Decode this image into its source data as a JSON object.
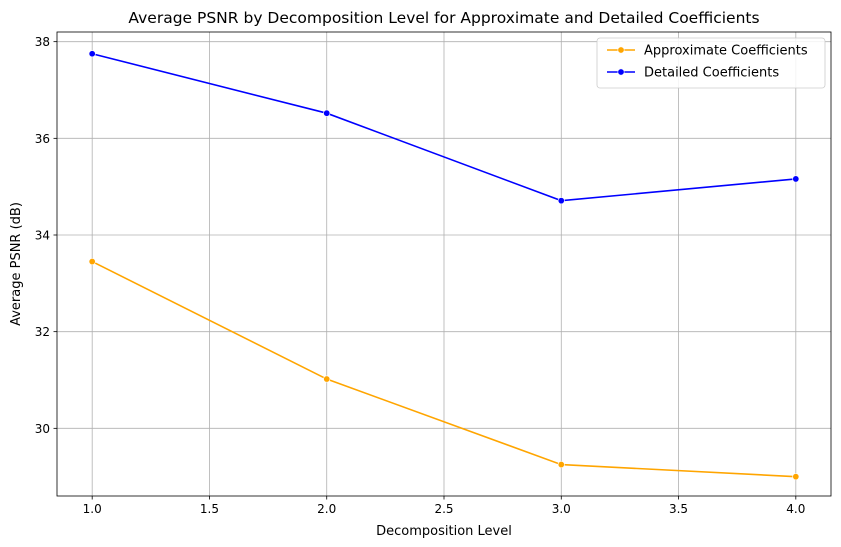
{
  "chart_data": {
    "type": "line",
    "title": "Average PSNR by Decomposition Level for Approximate and Detailed Coefficients",
    "xlabel": "Decomposition Level",
    "ylabel": "Average PSNR (dB)",
    "x": [
      1.0,
      2.0,
      3.0,
      4.0
    ],
    "xlim": [
      0.85,
      4.15
    ],
    "ylim": [
      28.6,
      38.2
    ],
    "xticks": [
      1.0,
      1.5,
      2.0,
      2.5,
      3.0,
      3.5,
      4.0
    ],
    "xtick_labels": [
      "1.0",
      "1.5",
      "2.0",
      "2.5",
      "3.0",
      "3.5",
      "4.0"
    ],
    "yticks": [
      30,
      32,
      34,
      36,
      38
    ],
    "ytick_labels": [
      "30",
      "32",
      "34",
      "36",
      "38"
    ],
    "grid": true,
    "legend_position": "top-right",
    "series": [
      {
        "name": "Approximate Coefficients",
        "color": "#ffa500",
        "values": [
          33.45,
          31.02,
          29.25,
          29.0
        ]
      },
      {
        "name": "Detailed Coefficients",
        "color": "#0000ff",
        "values": [
          37.75,
          36.52,
          34.71,
          35.16
        ]
      }
    ]
  }
}
